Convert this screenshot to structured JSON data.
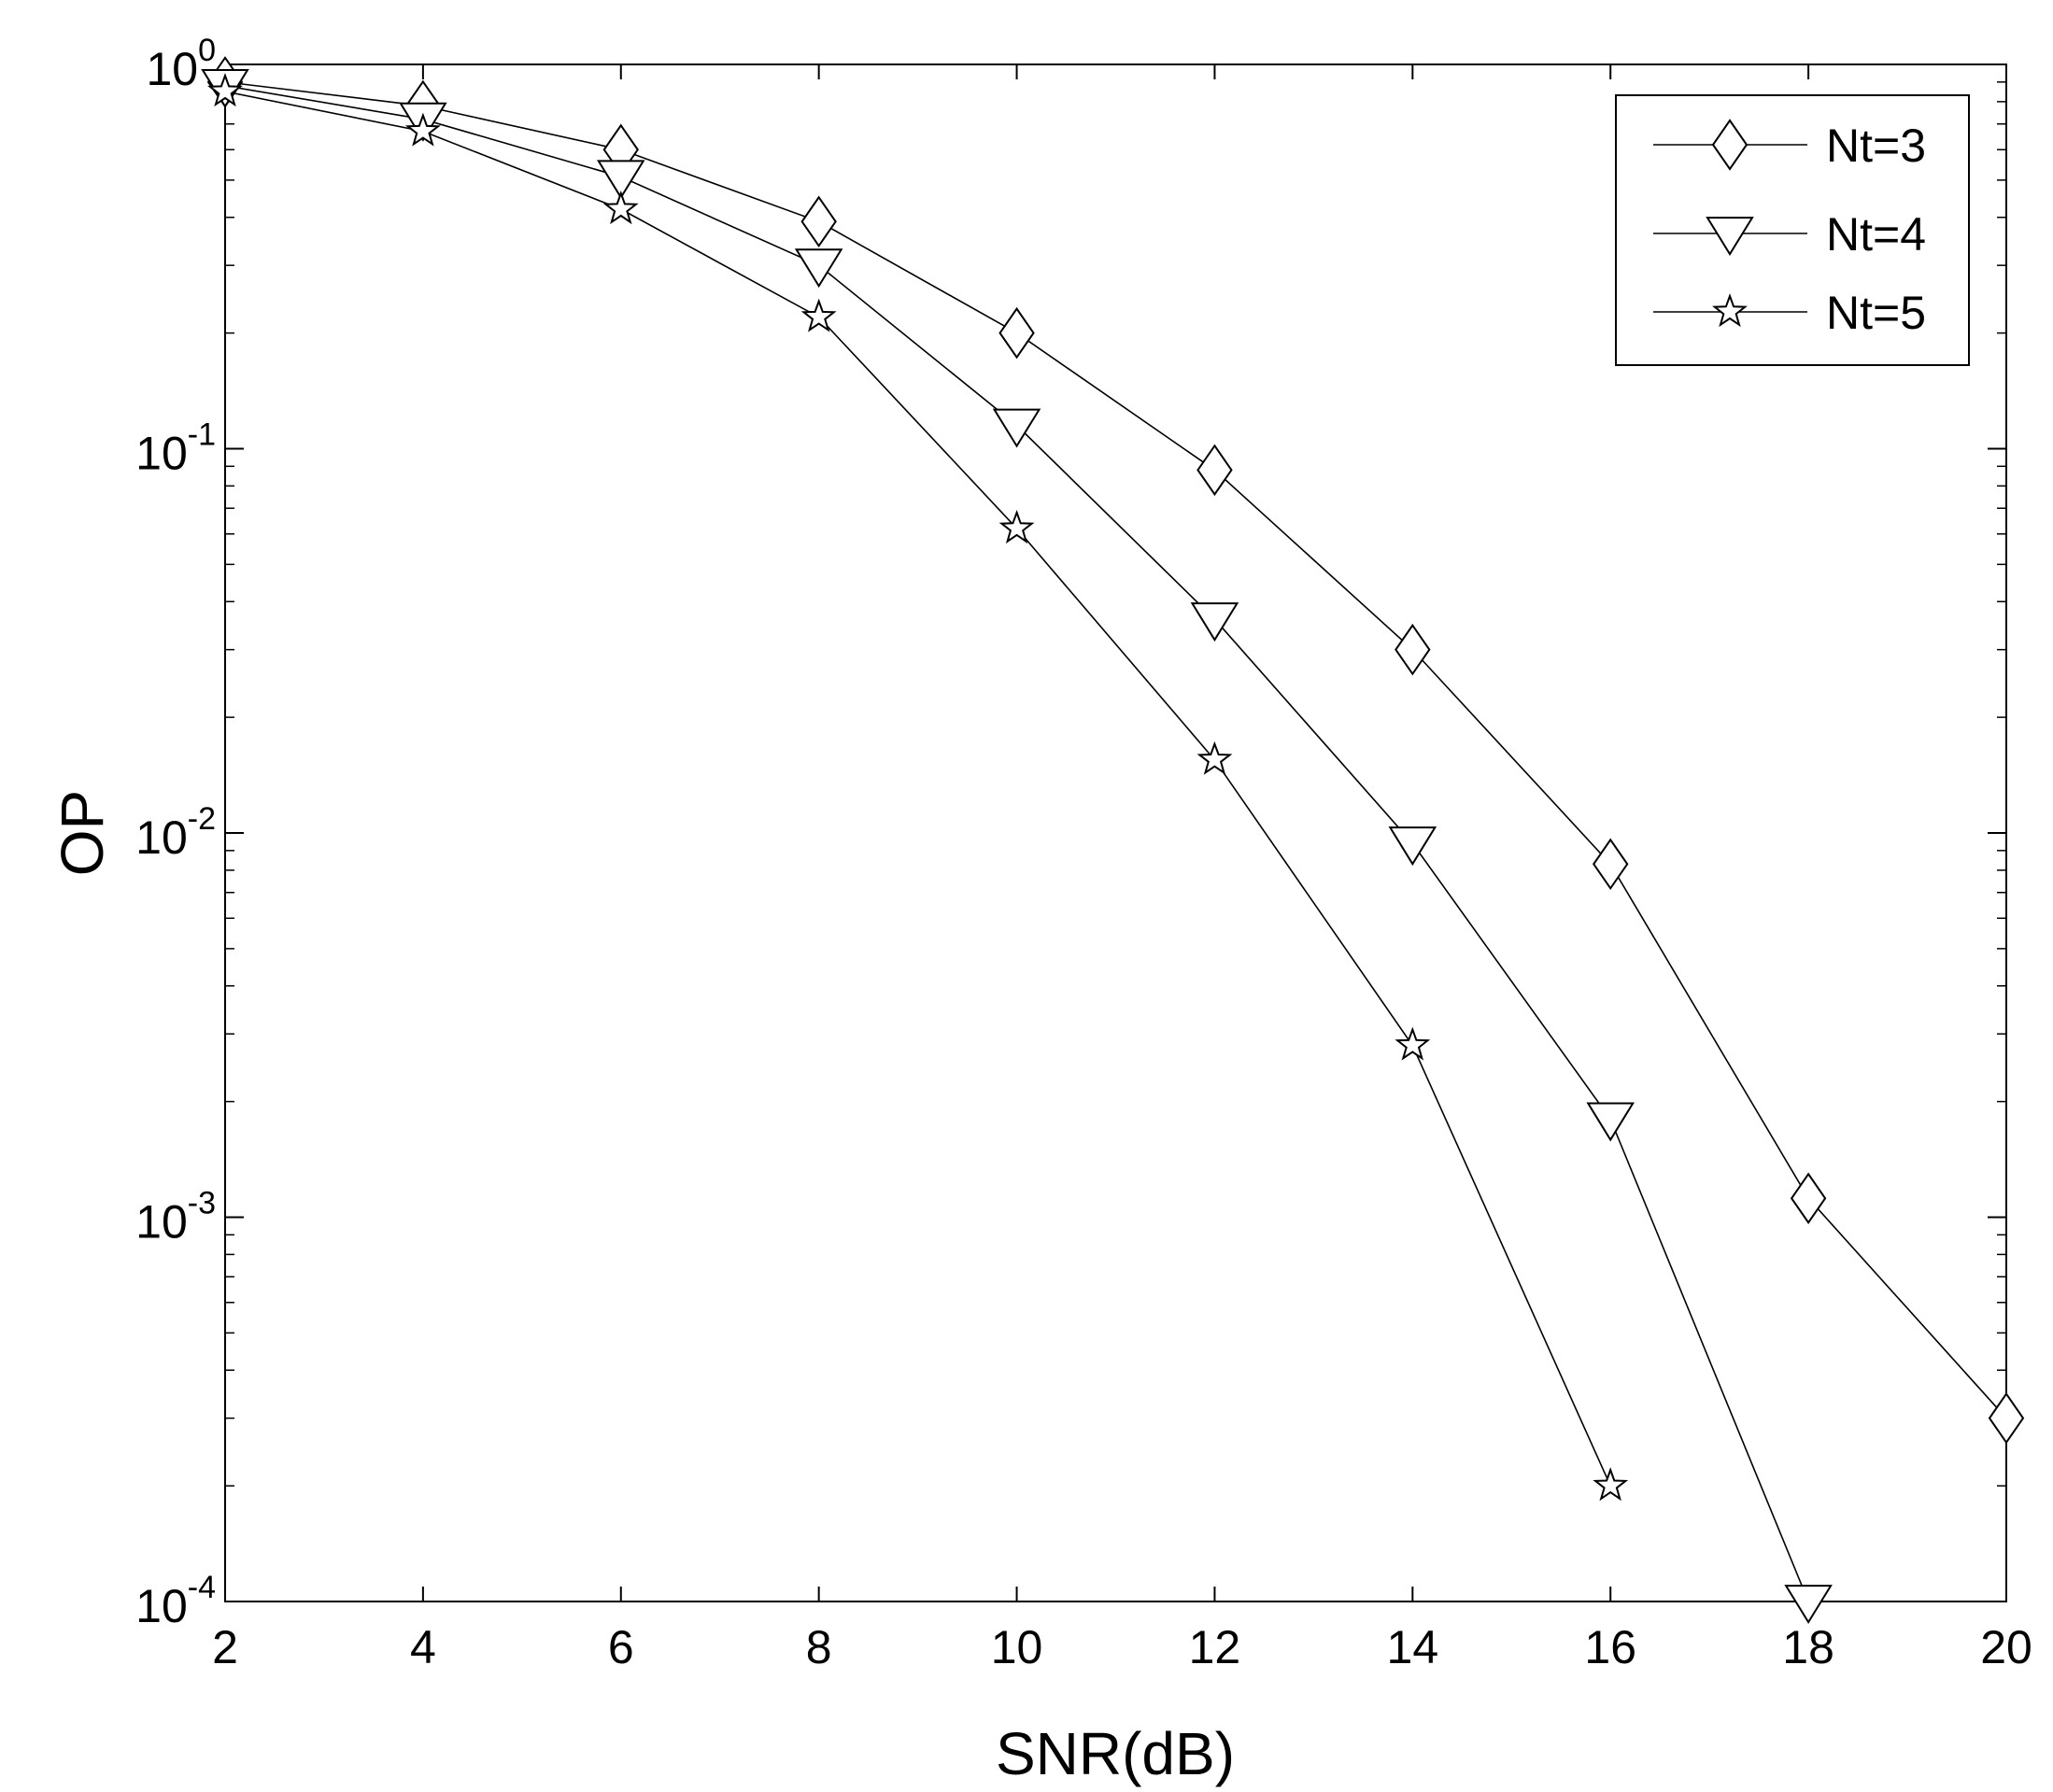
{
  "chart_data": {
    "type": "line",
    "title": "",
    "xlabel": "SNR(dB)",
    "ylabel": "OP",
    "xscale": "linear",
    "yscale": "log",
    "xlim": [
      2,
      20
    ],
    "ylim": [
      0.0001,
      1
    ],
    "grid": false,
    "legend_position": "top-right",
    "x_ticks": [
      2,
      4,
      6,
      8,
      10,
      12,
      14,
      16,
      18,
      20
    ],
    "x_tick_labels": [
      "2",
      "4",
      "6",
      "8",
      "10",
      "12",
      "14",
      "16",
      "18",
      "20"
    ],
    "y_ticks": [
      {
        "value": 1,
        "base": "10",
        "exp": "0"
      },
      {
        "value": 0.1,
        "base": "10",
        "exp": "-1"
      },
      {
        "value": 0.01,
        "base": "10",
        "exp": "-2"
      },
      {
        "value": 0.001,
        "base": "10",
        "exp": "-3"
      },
      {
        "value": 0.0001,
        "base": "10",
        "exp": "-4"
      }
    ],
    "series": [
      {
        "name": "Nt=3",
        "marker": "diamond",
        "x": [
          2,
          4,
          6,
          8,
          10,
          12,
          14,
          16,
          18,
          20
        ],
        "y": [
          0.9,
          0.78,
          0.6,
          0.39,
          0.2,
          0.088,
          0.03,
          0.0083,
          0.00112,
          0.0003
        ]
      },
      {
        "name": "Nt=4",
        "marker": "triangle-down",
        "x": [
          2,
          4,
          6,
          8,
          10,
          12,
          14,
          16,
          18
        ],
        "y": [
          0.88,
          0.72,
          0.51,
          0.3,
          0.115,
          0.036,
          0.0094,
          0.0018,
          0.0001
        ]
      },
      {
        "name": "Nt=5",
        "marker": "star",
        "x": [
          2,
          4,
          6,
          8,
          10,
          12,
          14,
          16
        ],
        "y": [
          0.85,
          0.67,
          0.42,
          0.22,
          0.062,
          0.0155,
          0.0028,
          0.0002
        ]
      }
    ]
  }
}
